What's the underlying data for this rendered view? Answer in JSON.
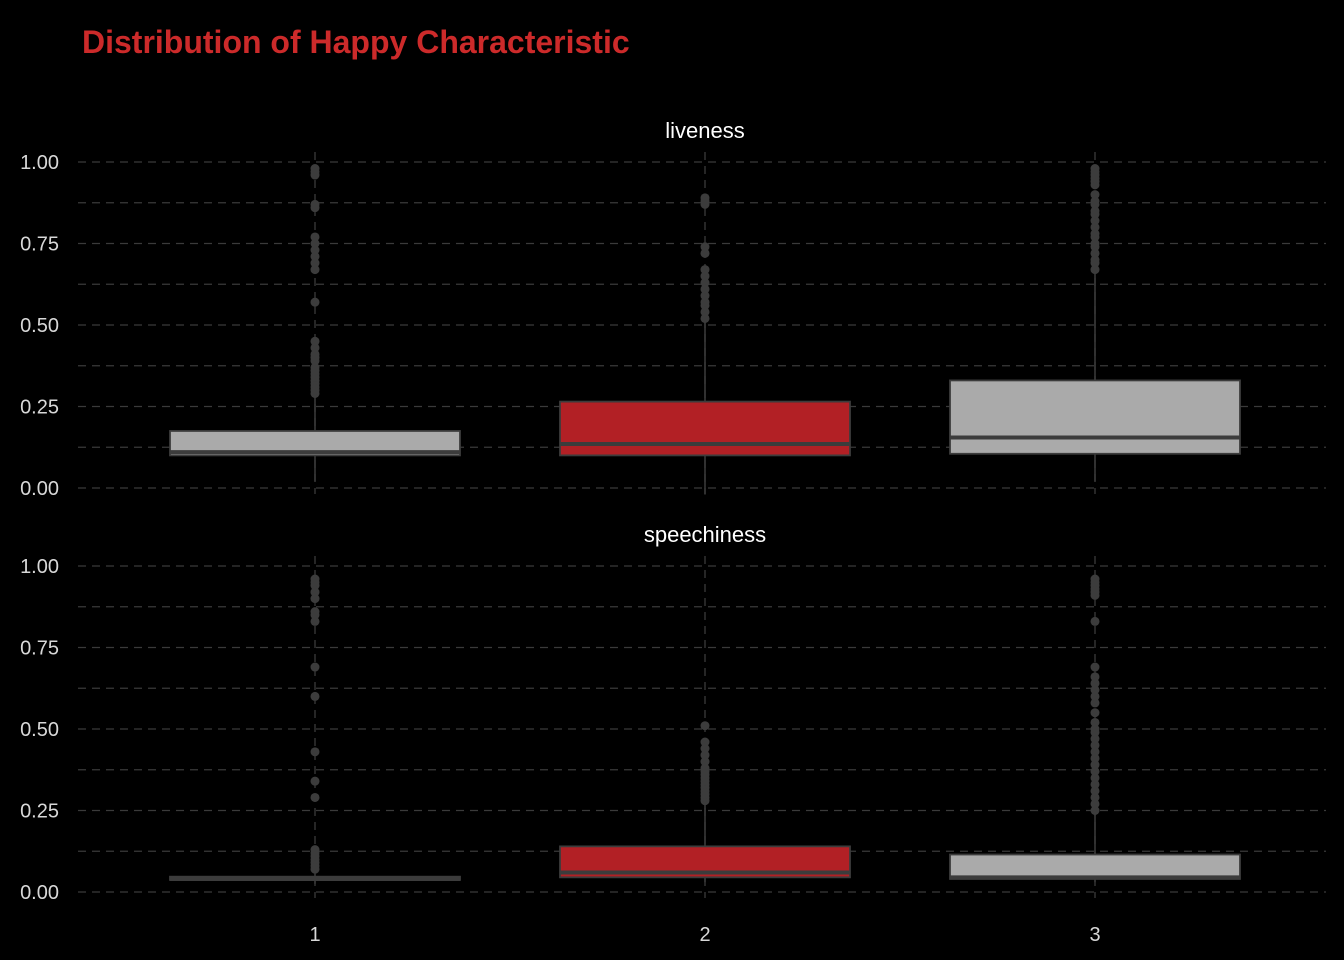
{
  "chart_data": {
    "type": "box",
    "title": "Distribution of Happy Characteristic",
    "xlabel": "",
    "ylabel": "",
    "categories": [
      "1",
      "2",
      "3"
    ],
    "ylim": [
      0,
      1
    ],
    "yticks": [
      0.0,
      0.25,
      0.5,
      0.75,
      1.0
    ],
    "ytick_labels": [
      "0.00",
      "0.25",
      "0.50",
      "0.75",
      "1.00"
    ],
    "grid": "dashed major and minor",
    "colors": {
      "background": "#000000",
      "title": "#cc2a2a",
      "grid": "#3a3a3a",
      "box_red": "#b22025",
      "box_gray": "#aaaaaa",
      "outline": "#3c3c3c",
      "outlier": "#3c3c3c",
      "text": "#d8d8d8"
    },
    "panels": [
      {
        "label": "liveness",
        "boxes": [
          {
            "category": "1",
            "color": "gray",
            "whisker_low": 0.02,
            "q1": 0.1,
            "median": 0.11,
            "q3": 0.175,
            "whisker_high": 0.28,
            "outliers": [
              0.29,
              0.3,
              0.31,
              0.32,
              0.33,
              0.34,
              0.35,
              0.36,
              0.37,
              0.39,
              0.4,
              0.41,
              0.43,
              0.45,
              0.57,
              0.67,
              0.69,
              0.71,
              0.73,
              0.75,
              0.77,
              0.86,
              0.87,
              0.96,
              0.97,
              0.98
            ]
          },
          {
            "category": "2",
            "color": "red",
            "whisker_low": -0.02,
            "q1": 0.1,
            "median": 0.135,
            "q3": 0.265,
            "whisker_high": 0.51,
            "outliers": [
              0.52,
              0.54,
              0.56,
              0.57,
              0.59,
              0.61,
              0.63,
              0.65,
              0.67,
              0.72,
              0.74,
              0.87,
              0.88,
              0.89
            ]
          },
          {
            "category": "3",
            "color": "gray",
            "whisker_low": 0.02,
            "q1": 0.105,
            "median": 0.155,
            "q3": 0.33,
            "whisker_high": 0.66,
            "outliers": [
              0.67,
              0.69,
              0.7,
              0.72,
              0.74,
              0.75,
              0.77,
              0.78,
              0.8,
              0.82,
              0.84,
              0.85,
              0.87,
              0.88,
              0.9,
              0.93,
              0.94,
              0.95,
              0.96,
              0.97,
              0.98
            ]
          }
        ]
      },
      {
        "label": "speechiness",
        "boxes": [
          {
            "category": "1",
            "color": "gray",
            "whisker_low": 0.025,
            "q1": 0.037,
            "median": 0.04,
            "q3": 0.047,
            "whisker_high": 0.065,
            "outliers": [
              0.07,
              0.08,
              0.09,
              0.1,
              0.11,
              0.12,
              0.13,
              0.29,
              0.34,
              0.43,
              0.6,
              0.69,
              0.83,
              0.85,
              0.86,
              0.9,
              0.92,
              0.94,
              0.95,
              0.96
            ]
          },
          {
            "category": "2",
            "color": "red",
            "whisker_low": 0.03,
            "q1": 0.045,
            "median": 0.06,
            "q3": 0.14,
            "whisker_high": 0.27,
            "outliers": [
              0.28,
              0.29,
              0.3,
              0.31,
              0.32,
              0.33,
              0.34,
              0.35,
              0.36,
              0.37,
              0.38,
              0.4,
              0.42,
              0.44,
              0.46,
              0.51
            ]
          },
          {
            "category": "3",
            "color": "gray",
            "whisker_low": 0.03,
            "q1": 0.04,
            "median": 0.045,
            "q3": 0.115,
            "whisker_high": 0.24,
            "outliers": [
              0.25,
              0.27,
              0.29,
              0.31,
              0.33,
              0.35,
              0.37,
              0.39,
              0.41,
              0.43,
              0.45,
              0.47,
              0.49,
              0.5,
              0.52,
              0.55,
              0.58,
              0.6,
              0.62,
              0.64,
              0.66,
              0.69,
              0.83,
              0.91,
              0.92,
              0.93,
              0.94,
              0.95,
              0.96
            ]
          }
        ]
      }
    ]
  }
}
